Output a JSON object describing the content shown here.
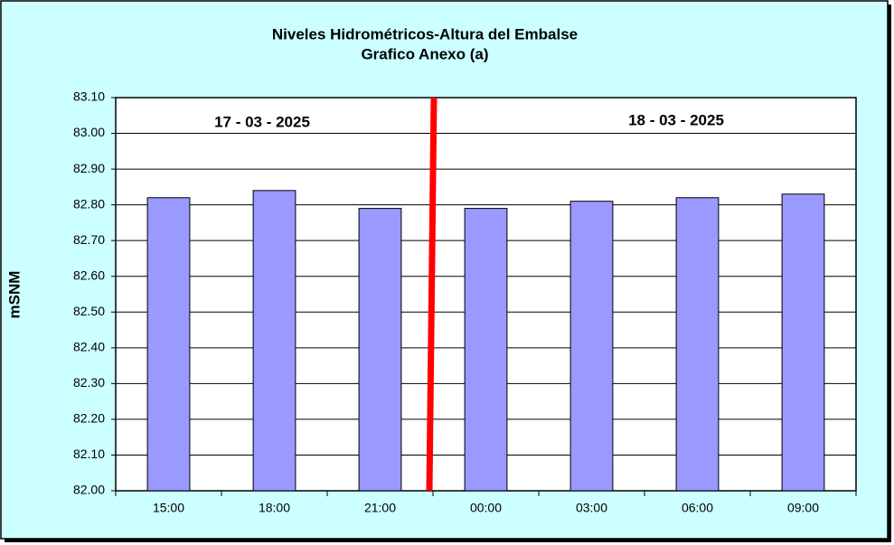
{
  "chart_data": {
    "type": "bar",
    "title": "Niveles Hidrométricos-Altura del Embalse",
    "subtitle": "Grafico Anexo (a)",
    "y_label": "mSNM",
    "annotations": [
      "17 - 03 - 2025",
      "18 - 03 - 2025"
    ],
    "categories": [
      "15:00",
      "18:00",
      "21:00",
      "00:00",
      "03:00",
      "06:00",
      "09:00"
    ],
    "values": [
      82.82,
      82.84,
      82.79,
      82.79,
      82.81,
      82.82,
      82.83
    ],
    "color": "#9999ff",
    "ylim": [
      82.0,
      83.1
    ],
    "yticks": [
      {
        "value": 82.0,
        "label": "82.00"
      },
      {
        "value": 82.1,
        "label": "82.10"
      },
      {
        "value": 82.2,
        "label": "82.20"
      },
      {
        "value": 82.3,
        "label": "82.30"
      },
      {
        "value": 82.4,
        "label": "82.40"
      },
      {
        "value": 82.5,
        "label": "82.50"
      },
      {
        "value": 82.6,
        "label": "82.60"
      },
      {
        "value": 82.7,
        "label": "82.70"
      },
      {
        "value": 82.8,
        "label": "82.80"
      },
      {
        "value": 82.9,
        "label": "82.90"
      },
      {
        "value": 83.0,
        "label": "83.00"
      },
      {
        "value": 83.1,
        "label": "83.10"
      }
    ],
    "grid": true
  }
}
